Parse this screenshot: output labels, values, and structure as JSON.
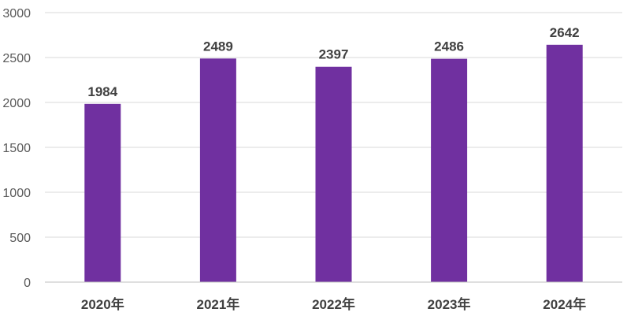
{
  "chart_data": {
    "type": "bar",
    "categories": [
      "2020年",
      "2021年",
      "2022年",
      "2023年",
      "2024年"
    ],
    "values": [
      1984,
      2489,
      2397,
      2486,
      2642
    ],
    "data_labels": [
      "1984",
      "2489",
      "2397",
      "2486",
      "2642"
    ],
    "yticks": [
      "0",
      "500",
      "1000",
      "1500",
      "2000",
      "2500",
      "3000"
    ],
    "ylim": [
      0,
      3000
    ],
    "grid": true,
    "legend": "none",
    "bar_color": "#7030a0"
  }
}
